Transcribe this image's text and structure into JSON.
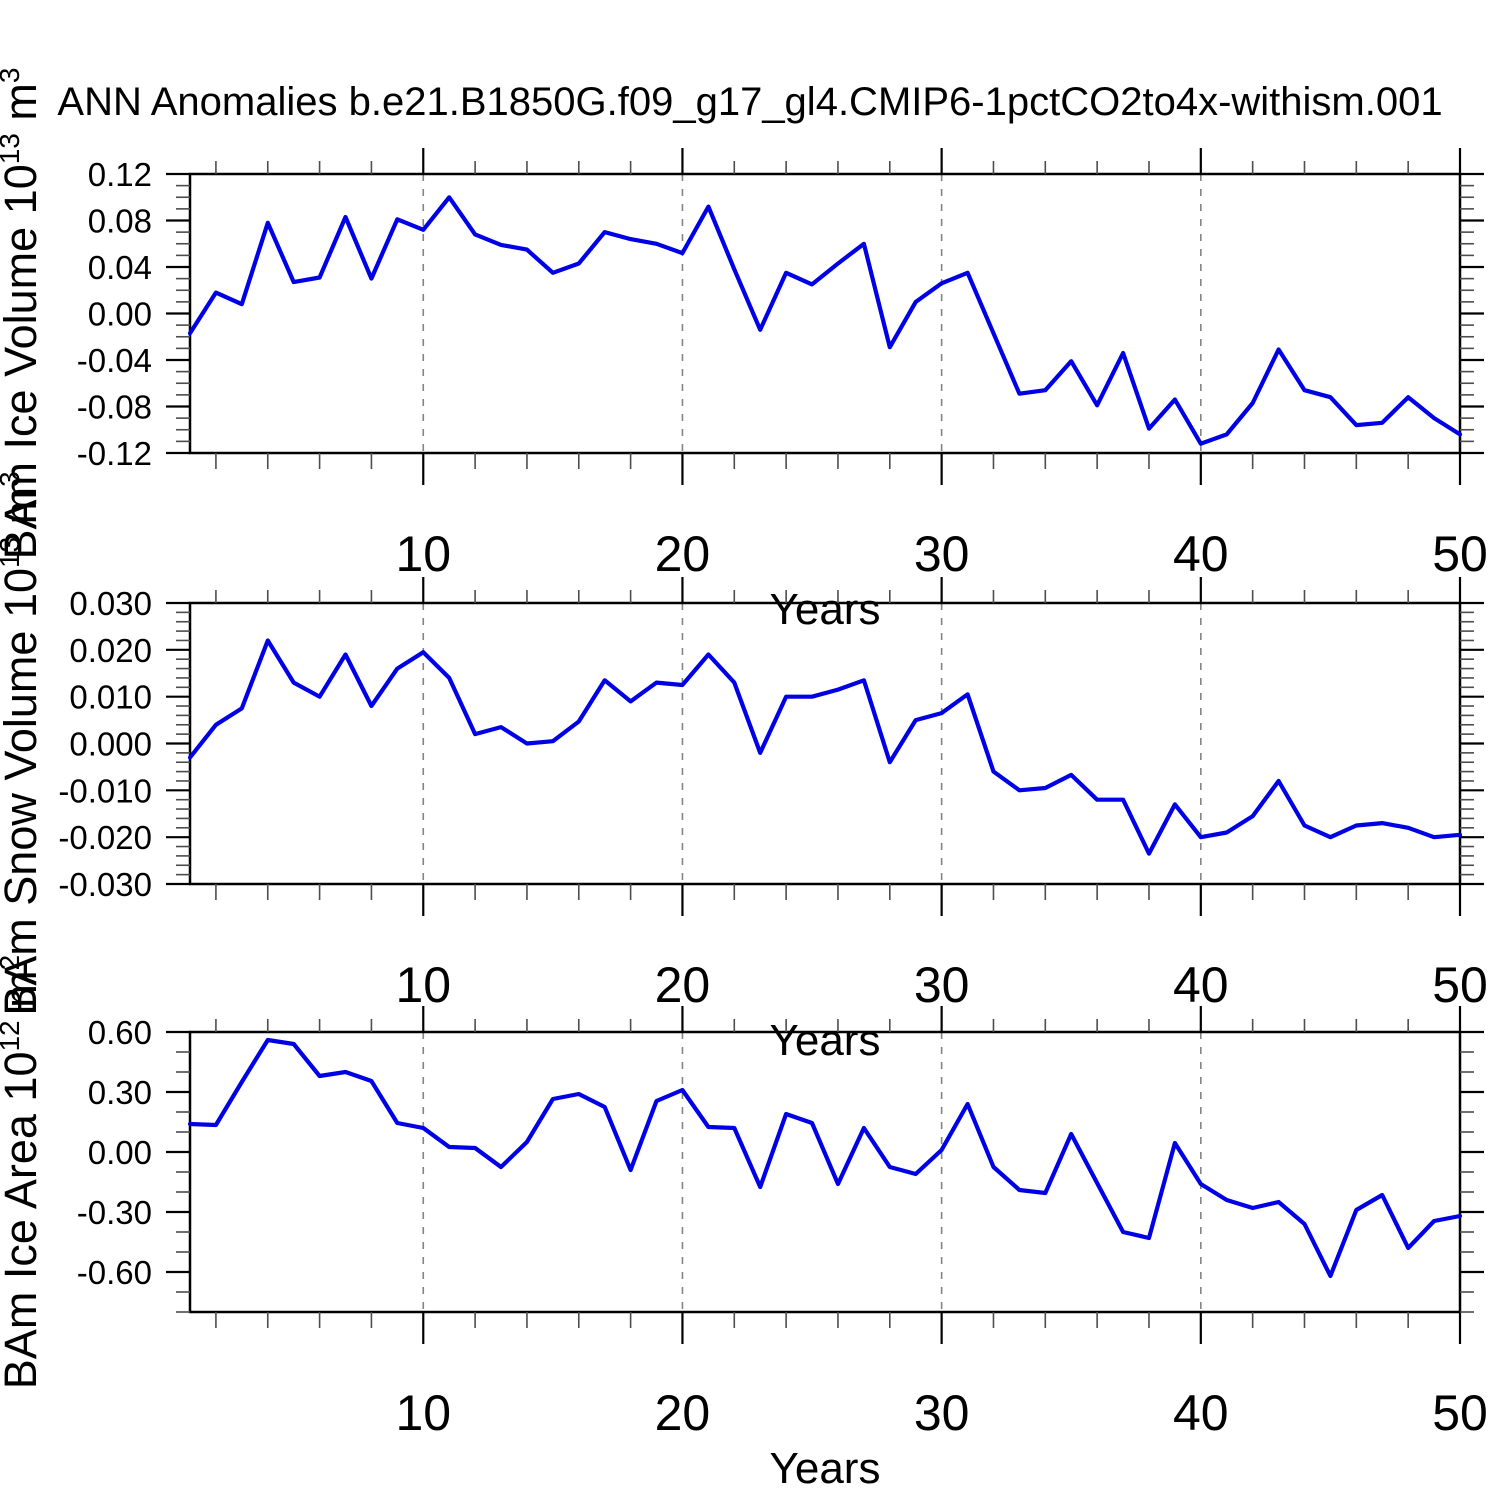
{
  "title": "ANN Anomalies b.e21.B1850G.f09_g17_gl4.CMIP6-1pctCO2to4x-withism.001",
  "colors": {
    "line": "#0000e6",
    "axis": "#000000",
    "minor_tick": "#4d4d4d",
    "gridline": "#848484",
    "background": "#ffffff",
    "text": "#000000"
  },
  "x_axis": {
    "label": "Years",
    "major_ticks": [
      10,
      20,
      30,
      40,
      50
    ],
    "major_tick_labels": [
      "10",
      "20",
      "30",
      "40",
      "50"
    ],
    "minor_step": 2,
    "gridline_years": [
      10,
      20,
      30,
      40
    ],
    "range": [
      1,
      50
    ]
  },
  "chart_data": [
    {
      "id": "ice-volume",
      "type": "line",
      "ylabel": "BAm Ice Volume 10^13 m^3",
      "ylabel_parts": [
        {
          "text": "BAm Ice Volume 10",
          "sup": false
        },
        {
          "text": "13",
          "sup": true
        },
        {
          "text": " m",
          "sup": false
        },
        {
          "text": "3",
          "sup": true
        }
      ],
      "xlabel": "Years",
      "xlim": [
        1,
        50
      ],
      "ylim": [
        -0.12,
        0.12
      ],
      "ytick_values": [
        0.12,
        0.08,
        0.04,
        0.0,
        -0.04,
        -0.08,
        -0.12
      ],
      "ytick_labels": [
        "0.12",
        "0.08",
        "0.04",
        "0.00",
        "-0.04",
        "-0.08",
        "-0.12"
      ],
      "yminor_step": 0.01,
      "grid": false,
      "legend": "none",
      "x": [
        1,
        2,
        3,
        4,
        5,
        6,
        7,
        8,
        9,
        10,
        11,
        12,
        13,
        14,
        15,
        16,
        17,
        18,
        19,
        20,
        21,
        22,
        23,
        24,
        25,
        26,
        27,
        28,
        29,
        30,
        31,
        32,
        33,
        34,
        35,
        36,
        37,
        38,
        39,
        40,
        41,
        42,
        43,
        44,
        45,
        46,
        47,
        48,
        49,
        50
      ],
      "values": [
        -0.017,
        0.018,
        0.008,
        0.078,
        0.027,
        0.031,
        0.083,
        0.03,
        0.081,
        0.072,
        0.1,
        0.068,
        0.059,
        0.055,
        0.035,
        0.043,
        0.07,
        0.064,
        0.06,
        0.052,
        0.092,
        0.038,
        -0.014,
        0.035,
        0.025,
        0.043,
        0.06,
        -0.029,
        0.01,
        0.026,
        0.035,
        -0.017,
        -0.069,
        -0.066,
        -0.041,
        -0.079,
        -0.034,
        -0.099,
        -0.074,
        -0.112,
        -0.104,
        -0.077,
        -0.031,
        -0.066,
        -0.072,
        -0.096,
        -0.094,
        -0.072,
        -0.09,
        -0.104
      ]
    },
    {
      "id": "snow-volume",
      "type": "line",
      "ylabel": "BAm Snow Volume 10^13 m^3",
      "ylabel_parts": [
        {
          "text": "BAm Snow Volume 10",
          "sup": false
        },
        {
          "text": "13",
          "sup": true
        },
        {
          "text": " m",
          "sup": false
        },
        {
          "text": "3",
          "sup": true
        }
      ],
      "xlabel": "Years",
      "xlim": [
        1,
        50
      ],
      "ylim": [
        -0.03,
        0.03
      ],
      "ytick_values": [
        0.03,
        0.02,
        0.01,
        0.0,
        -0.01,
        -0.02,
        -0.03
      ],
      "ytick_labels": [
        "0.030",
        "0.020",
        "0.010",
        "0.000",
        "-0.010",
        "-0.020",
        "-0.030"
      ],
      "yminor_step": 0.002,
      "grid": false,
      "legend": "none",
      "x": [
        1,
        2,
        3,
        4,
        5,
        6,
        7,
        8,
        9,
        10,
        11,
        12,
        13,
        14,
        15,
        16,
        17,
        18,
        19,
        20,
        21,
        22,
        23,
        24,
        25,
        26,
        27,
        28,
        29,
        30,
        31,
        32,
        33,
        34,
        35,
        36,
        37,
        38,
        39,
        40,
        41,
        42,
        43,
        44,
        45,
        46,
        47,
        48,
        49,
        50
      ],
      "values": [
        -0.003,
        0.004,
        0.0075,
        0.022,
        0.013,
        0.01,
        0.019,
        0.008,
        0.016,
        0.0195,
        0.014,
        0.002,
        0.0035,
        0.0,
        0.0005,
        0.0047,
        0.0135,
        0.009,
        0.013,
        0.0125,
        0.019,
        0.013,
        -0.002,
        0.01,
        0.01,
        0.0115,
        0.0135,
        -0.004,
        0.005,
        0.0065,
        0.0105,
        -0.006,
        -0.01,
        -0.0095,
        -0.0067,
        -0.012,
        -0.012,
        -0.0235,
        -0.013,
        -0.02,
        -0.019,
        -0.0155,
        -0.008,
        -0.0175,
        -0.02,
        -0.0175,
        -0.017,
        -0.018,
        -0.02,
        -0.0195
      ]
    },
    {
      "id": "ice-area",
      "type": "line",
      "ylabel": "BAm Ice Area 10^12 m^2",
      "ylabel_parts": [
        {
          "text": "BAm Ice Area 10",
          "sup": false
        },
        {
          "text": "12",
          "sup": true
        },
        {
          "text": " m",
          "sup": false
        },
        {
          "text": "2",
          "sup": true
        }
      ],
      "xlabel": "Years",
      "xlim": [
        1,
        50
      ],
      "ylim": [
        -0.8,
        0.6
      ],
      "ytick_values": [
        0.6,
        0.3,
        0.0,
        -0.3,
        -0.6
      ],
      "ytick_labels": [
        "0.60",
        "0.30",
        "0.00",
        "-0.30",
        "-0.60"
      ],
      "yminor_step": 0.1,
      "grid": false,
      "legend": "none",
      "x": [
        1,
        2,
        3,
        4,
        5,
        6,
        7,
        8,
        9,
        10,
        11,
        12,
        13,
        14,
        15,
        16,
        17,
        18,
        19,
        20,
        21,
        22,
        23,
        24,
        25,
        26,
        27,
        28,
        29,
        30,
        31,
        32,
        33,
        34,
        35,
        36,
        37,
        38,
        39,
        40,
        41,
        42,
        43,
        44,
        45,
        46,
        47,
        48,
        49,
        50
      ],
      "values": [
        0.14,
        0.135,
        0.35,
        0.56,
        0.54,
        0.38,
        0.4,
        0.355,
        0.145,
        0.12,
        0.025,
        0.02,
        -0.075,
        0.05,
        0.265,
        0.29,
        0.225,
        -0.09,
        0.255,
        0.31,
        0.125,
        0.12,
        -0.175,
        0.19,
        0.145,
        -0.16,
        0.12,
        -0.075,
        -0.11,
        0.01,
        0.24,
        -0.075,
        -0.19,
        -0.205,
        0.09,
        -0.155,
        -0.4,
        -0.43,
        0.045,
        -0.16,
        -0.24,
        -0.28,
        -0.25,
        -0.36,
        -0.62,
        -0.29,
        -0.215,
        -0.48,
        -0.345,
        -0.32
      ]
    }
  ]
}
